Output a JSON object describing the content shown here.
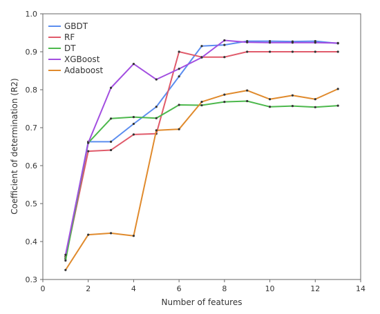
{
  "chart_data": {
    "type": "line",
    "title": "",
    "xlabel": "Number of features",
    "ylabel": "Coefficient of determination (R2)",
    "xlim": [
      0,
      14
    ],
    "ylim": [
      0.3,
      1.0
    ],
    "x_ticks": [
      0,
      2,
      4,
      6,
      8,
      10,
      12,
      14
    ],
    "y_ticks": [
      0.3,
      0.4,
      0.5,
      0.6,
      0.7,
      0.8,
      0.9,
      1.0
    ],
    "grid": false,
    "legend_position": "top-left",
    "x": [
      1,
      2,
      3,
      4,
      5,
      6,
      7,
      8,
      9,
      10,
      11,
      12,
      13
    ],
    "series": [
      {
        "name": "GBDT",
        "color": "#5b8def",
        "values": [
          0.36,
          0.663,
          0.663,
          0.71,
          0.755,
          0.835,
          0.915,
          0.918,
          0.928,
          0.928,
          0.927,
          0.928,
          0.922
        ]
      },
      {
        "name": "RF",
        "color": "#e05a6a",
        "values": [
          0.355,
          0.638,
          0.641,
          0.682,
          0.684,
          0.9,
          0.886,
          0.886,
          0.9,
          0.9,
          0.9,
          0.9,
          0.9
        ]
      },
      {
        "name": "DT",
        "color": "#4cb84c",
        "values": [
          0.35,
          0.66,
          0.724,
          0.728,
          0.725,
          0.76,
          0.759,
          0.768,
          0.77,
          0.755,
          0.757,
          0.754,
          0.758
        ]
      },
      {
        "name": "XGBoost",
        "color": "#a24ee0",
        "values": [
          0.365,
          0.66,
          0.805,
          0.868,
          0.827,
          0.855,
          0.885,
          0.93,
          0.925,
          0.924,
          0.924,
          0.924,
          0.923
        ]
      },
      {
        "name": "Adaboost",
        "color": "#e08a2c",
        "values": [
          0.325,
          0.418,
          0.422,
          0.415,
          0.693,
          0.696,
          0.768,
          0.787,
          0.798,
          0.775,
          0.785,
          0.775,
          0.802
        ]
      }
    ]
  }
}
